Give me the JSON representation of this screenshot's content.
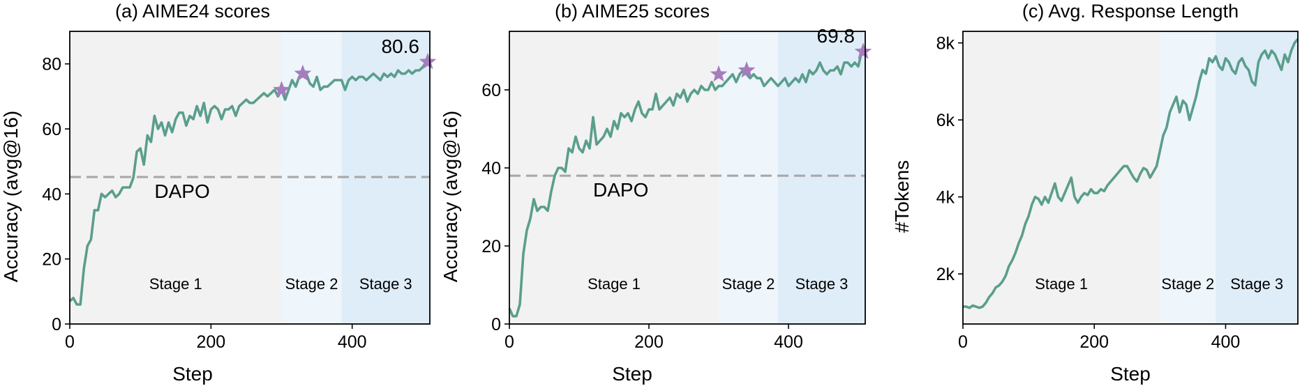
{
  "figure": {
    "colors": {
      "line": "#5A9E8C",
      "star": "#A57DBE",
      "ref_line": "#A8A8A8",
      "stage1_bg": "#F2F2F2",
      "stage2_bg": "#EEF5FB",
      "stage3_bg": "#DFEDF8"
    }
  },
  "chart_data": [
    {
      "type": "line",
      "title": "(a) AIME24 scores",
      "xlabel": "Step",
      "ylabel": "Accuracy (avg@16)",
      "xlim": [
        0,
        510
      ],
      "ylim": [
        0,
        90
      ],
      "xticks": [
        0,
        200,
        400
      ],
      "xtick_labels": [
        "0",
        "200",
        "400"
      ],
      "yticks": [
        0,
        20,
        40,
        60,
        80
      ],
      "ytick_labels": [
        "0",
        "20",
        "40",
        "60",
        "80"
      ],
      "stages": [
        {
          "label": "Stage 1",
          "start": 0,
          "end": 300
        },
        {
          "label": "Stage 2",
          "start": 300,
          "end": 385
        },
        {
          "label": "Stage 3",
          "start": 385,
          "end": 510
        }
      ],
      "reference": {
        "label": "DAPO",
        "value": 45.2
      },
      "stars": [
        {
          "x": 300,
          "y": 72
        },
        {
          "x": 330,
          "y": 77
        },
        {
          "x": 507,
          "y": 80.6
        }
      ],
      "annotation": {
        "text": "80.6",
        "x": 507,
        "y": 80.6
      },
      "series": [
        {
          "name": "AIME24",
          "x": [
            0,
            5,
            10,
            15,
            20,
            25,
            30,
            35,
            40,
            45,
            50,
            55,
            60,
            65,
            70,
            75,
            80,
            85,
            90,
            95,
            100,
            105,
            110,
            115,
            120,
            125,
            130,
            135,
            140,
            145,
            150,
            155,
            160,
            165,
            170,
            175,
            180,
            185,
            190,
            195,
            200,
            205,
            210,
            215,
            220,
            225,
            230,
            235,
            240,
            245,
            250,
            255,
            260,
            265,
            270,
            275,
            280,
            285,
            290,
            295,
            300,
            305,
            310,
            315,
            320,
            325,
            330,
            335,
            340,
            345,
            350,
            355,
            360,
            365,
            370,
            375,
            380,
            385,
            390,
            395,
            400,
            405,
            410,
            415,
            420,
            425,
            430,
            435,
            440,
            445,
            450,
            455,
            460,
            465,
            470,
            475,
            480,
            485,
            490,
            495,
            500,
            505,
            510
          ],
          "values": [
            7,
            8,
            6,
            6,
            17,
            24,
            26,
            35,
            35,
            40,
            39,
            40,
            41,
            39,
            40,
            42,
            42,
            42,
            45,
            53,
            54,
            49,
            58,
            56,
            64,
            60,
            62,
            58,
            62,
            59,
            63,
            65,
            65,
            61,
            64,
            63,
            67,
            64,
            68,
            62,
            66,
            67,
            66,
            63,
            66,
            66,
            67,
            64,
            67,
            68,
            69,
            68,
            68,
            69,
            70,
            71,
            70,
            71,
            72,
            70,
            72,
            69,
            72,
            75,
            73,
            76,
            77,
            77,
            74,
            73,
            76,
            72,
            73,
            73,
            74,
            75,
            75,
            75,
            72,
            75,
            76,
            75,
            76,
            76,
            75,
            76,
            77,
            76,
            75,
            77,
            76,
            77,
            76,
            78,
            77,
            77,
            78,
            77,
            78,
            78,
            79,
            80.6,
            80
          ]
        }
      ]
    },
    {
      "type": "line",
      "title": "(b) AIME25 scores",
      "xlabel": "Step",
      "ylabel": "Accuracy (avg@16)",
      "xlim": [
        0,
        510
      ],
      "ylim": [
        0,
        75
      ],
      "xticks": [
        0,
        200,
        400
      ],
      "xtick_labels": [
        "0",
        "200",
        "400"
      ],
      "yticks": [
        0,
        20,
        40,
        60
      ],
      "ytick_labels": [
        "0",
        "20",
        "40",
        "60"
      ],
      "stages": [
        {
          "label": "Stage 1",
          "start": 0,
          "end": 300
        },
        {
          "label": "Stage 2",
          "start": 300,
          "end": 385
        },
        {
          "label": "Stage 3",
          "start": 385,
          "end": 510
        }
      ],
      "reference": {
        "label": "DAPO",
        "value": 38
      },
      "stars": [
        {
          "x": 300,
          "y": 64
        },
        {
          "x": 340,
          "y": 65
        },
        {
          "x": 507,
          "y": 69.8
        }
      ],
      "annotation": {
        "text": "69.8",
        "x": 507,
        "y": 69.8
      },
      "series": [
        {
          "name": "AIME25",
          "x": [
            0,
            5,
            10,
            15,
            20,
            25,
            30,
            35,
            40,
            45,
            50,
            55,
            60,
            65,
            70,
            75,
            80,
            85,
            90,
            95,
            100,
            105,
            110,
            115,
            120,
            125,
            130,
            135,
            140,
            145,
            150,
            155,
            160,
            165,
            170,
            175,
            180,
            185,
            190,
            195,
            200,
            205,
            210,
            215,
            220,
            225,
            230,
            235,
            240,
            245,
            250,
            255,
            260,
            265,
            270,
            275,
            280,
            285,
            290,
            295,
            300,
            305,
            310,
            315,
            320,
            325,
            330,
            335,
            340,
            345,
            350,
            355,
            360,
            365,
            370,
            375,
            380,
            385,
            390,
            395,
            400,
            405,
            410,
            415,
            420,
            425,
            430,
            435,
            440,
            445,
            450,
            455,
            460,
            465,
            470,
            475,
            480,
            485,
            490,
            495,
            500,
            505,
            510
          ],
          "values": [
            4,
            2,
            2,
            5,
            18,
            24,
            27,
            32,
            29,
            30,
            30,
            29,
            34,
            38,
            40,
            40,
            39,
            45,
            44,
            48,
            45,
            44,
            47,
            45,
            53,
            46,
            47,
            48,
            50,
            48,
            52,
            50,
            54,
            53,
            54,
            52,
            55,
            57,
            54,
            53,
            55,
            55,
            59,
            55,
            56,
            57,
            58,
            56,
            59,
            58,
            60,
            57,
            59,
            60,
            59,
            61,
            60,
            60,
            62,
            60,
            61,
            61,
            62,
            63,
            64,
            62,
            64,
            65,
            64,
            63,
            64,
            63,
            63,
            61,
            62,
            63,
            62,
            61,
            62,
            63,
            61,
            62,
            63,
            62,
            64,
            62,
            65,
            64,
            65,
            67,
            65,
            64,
            65,
            65,
            66,
            64,
            67,
            67,
            66,
            67,
            66,
            69.8,
            69
          ]
        }
      ]
    },
    {
      "type": "line",
      "title": "(c) Avg. Response Length",
      "xlabel": "Step",
      "ylabel": "#Tokens",
      "xlim": [
        0,
        510
      ],
      "ylim": [
        700,
        8300
      ],
      "xticks": [
        0,
        200,
        400
      ],
      "xtick_labels": [
        "0",
        "200",
        "400"
      ],
      "yticks": [
        2000,
        4000,
        6000,
        8000
      ],
      "ytick_labels": [
        "2k",
        "4k",
        "6k",
        "8k"
      ],
      "stages": [
        {
          "label": "Stage 1",
          "start": 0,
          "end": 300
        },
        {
          "label": "Stage 2",
          "start": 300,
          "end": 385
        },
        {
          "label": "Stage 3",
          "start": 385,
          "end": 510
        }
      ],
      "series": [
        {
          "name": "Avg. Response Length",
          "x": [
            0,
            5,
            10,
            15,
            20,
            25,
            30,
            35,
            40,
            45,
            50,
            55,
            60,
            65,
            70,
            75,
            80,
            85,
            90,
            95,
            100,
            105,
            110,
            115,
            120,
            125,
            130,
            135,
            140,
            145,
            150,
            155,
            160,
            165,
            170,
            175,
            180,
            185,
            190,
            195,
            200,
            205,
            210,
            215,
            220,
            225,
            230,
            235,
            240,
            245,
            250,
            255,
            260,
            265,
            270,
            275,
            280,
            285,
            290,
            295,
            300,
            305,
            310,
            315,
            320,
            325,
            330,
            335,
            340,
            345,
            350,
            355,
            360,
            365,
            370,
            375,
            380,
            385,
            390,
            395,
            400,
            405,
            410,
            415,
            420,
            425,
            430,
            435,
            440,
            445,
            450,
            455,
            460,
            465,
            470,
            475,
            480,
            485,
            490,
            495,
            500,
            505,
            510
          ],
          "values": [
            1150,
            1150,
            1120,
            1180,
            1150,
            1120,
            1150,
            1250,
            1400,
            1500,
            1650,
            1700,
            1800,
            1950,
            2200,
            2350,
            2550,
            2800,
            3000,
            3300,
            3500,
            3800,
            4000,
            3950,
            3800,
            4000,
            3850,
            4100,
            4350,
            4000,
            3900,
            4100,
            4300,
            4500,
            4000,
            3850,
            4000,
            4100,
            4050,
            4200,
            4100,
            4100,
            4200,
            4150,
            4300,
            4400,
            4500,
            4600,
            4700,
            4800,
            4800,
            4650,
            4500,
            4400,
            4600,
            4750,
            4700,
            4500,
            4650,
            4800,
            5200,
            5600,
            5800,
            6200,
            6400,
            6600,
            6200,
            6500,
            6400,
            6000,
            6300,
            6600,
            7000,
            7300,
            7200,
            7600,
            7500,
            7650,
            7400,
            7300,
            7600,
            7500,
            7300,
            7200,
            7500,
            7600,
            7400,
            7300,
            7000,
            6900,
            7500,
            7700,
            7800,
            7600,
            7800,
            7700,
            7500,
            7300,
            7700,
            7500,
            7800,
            8000,
            8100
          ]
        }
      ]
    }
  ]
}
